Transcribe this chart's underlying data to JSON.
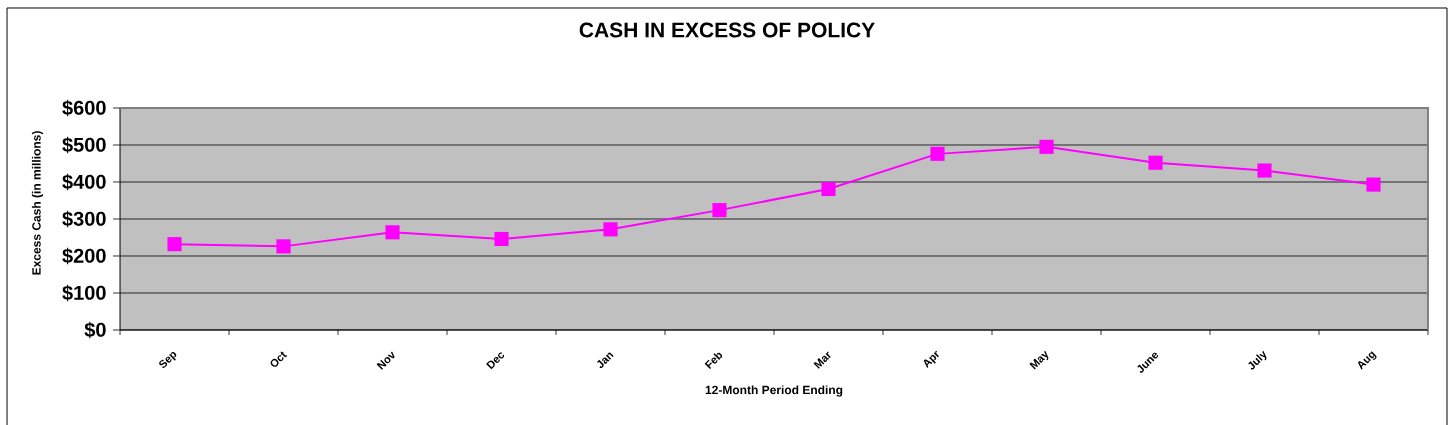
{
  "chart_data": {
    "type": "line",
    "title": "CASH IN EXCESS OF POLICY",
    "xlabel": "12-Month Period Ending",
    "ylabel": "Excess Cash (in millions)",
    "categories": [
      "Sep",
      "Oct",
      "Nov",
      "Dec",
      "Jan",
      "Feb",
      "Mar",
      "Apr",
      "May",
      "June",
      "July",
      "Aug"
    ],
    "series": [
      {
        "color": "#ff00ff",
        "values": [
          232,
          226,
          264,
          246,
          272,
          324,
          381,
          476,
          495,
          452,
          431,
          393
        ]
      }
    ],
    "ylim": [
      0,
      600
    ],
    "yticks": [
      {
        "value": 0,
        "label": "$0"
      },
      {
        "value": 100,
        "label": "$100"
      },
      {
        "value": 200,
        "label": "$200"
      },
      {
        "value": 300,
        "label": "$300"
      },
      {
        "value": 400,
        "label": "$400"
      },
      {
        "value": 500,
        "label": "$500"
      },
      {
        "value": 600,
        "label": "$600"
      }
    ],
    "grid": "y",
    "marker": "square",
    "line_style": "solid"
  }
}
